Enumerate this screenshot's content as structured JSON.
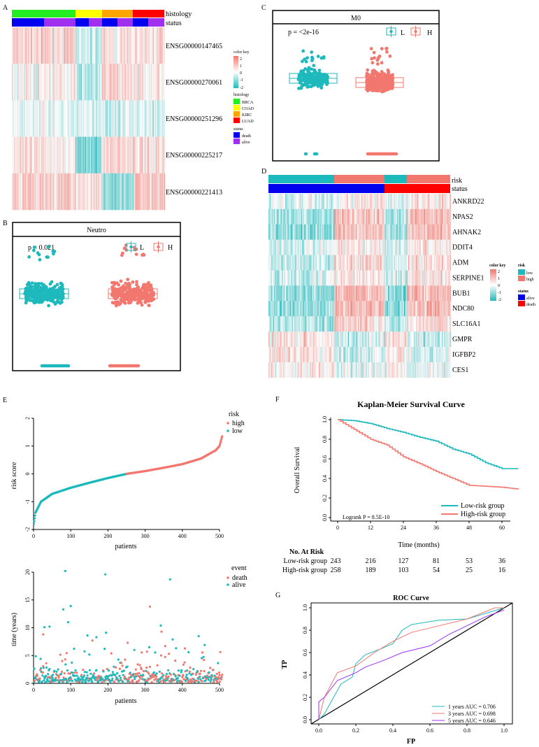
{
  "colors": {
    "teal": "#1DB9BC",
    "salmon": "#F2776E",
    "purple": "#9B30FF",
    "black": "#000000",
    "BRCA": "#22EE22",
    "COAD": "#FFFF00",
    "KIRC": "#FFA500",
    "LUAD": "#FF0000",
    "death": "#0000EE",
    "alive": "#A030F0",
    "statusAliveD": "#0000EE",
    "statusDeathD": "#FF0000"
  },
  "panelA": {
    "label": "A",
    "annotation_labels": [
      "histology",
      "status"
    ],
    "rows": [
      "ENSG00000147465",
      "ENSG00000270061",
      "ENSG00000251296",
      "ENSG00000225217",
      "ENSG00000221413"
    ],
    "histology_groups": [
      "BRCA",
      "COAD",
      "KIRC",
      "LUAD"
    ],
    "status_pattern": [
      "death",
      "alive",
      "death",
      "alive",
      "death",
      "alive",
      "death",
      "alive"
    ],
    "legend": {
      "color_key_title": "color key",
      "color_key_ticks": [
        "2",
        "1",
        "0",
        "-1",
        "-2"
      ],
      "histology_title": "histology",
      "histology": [
        "BRCA",
        "COAD",
        "KIRC",
        "LUAD"
      ],
      "status_title": "status",
      "status": [
        "death",
        "alive"
      ]
    }
  },
  "panelB": {
    "label": "B",
    "title": "Neutro",
    "pvalue": "p = 0.021",
    "legend": [
      "L",
      "H"
    ]
  },
  "panelC": {
    "label": "C",
    "title": "M0",
    "pvalue": "p = <2e-16",
    "legend": [
      "L",
      "H"
    ]
  },
  "panelD": {
    "label": "D",
    "annotation_labels": [
      "risk",
      "status"
    ],
    "rows": [
      "ANKRD22",
      "NPAS2",
      "AHNAK2",
      "DDIT4",
      "ADM",
      "SERPINE1",
      "BUB1",
      "NDC80",
      "SLC16A1",
      "GMPR",
      "IGFBP2",
      "CES1"
    ],
    "risk_pattern": [
      "low",
      "high",
      "low",
      "high"
    ],
    "status_pattern": [
      "alive",
      "death"
    ],
    "legend": {
      "color_key_title": "color key",
      "color_key_ticks": [
        "2",
        "1",
        "0",
        "-1",
        "-2"
      ],
      "risk_title": "risk",
      "risk": [
        "low",
        "high"
      ],
      "status_title": "status",
      "status": [
        "alive",
        "death"
      ]
    }
  },
  "panelE": {
    "label": "E"
  },
  "panelF": {
    "label": "F"
  },
  "panelG": {
    "label": "G"
  },
  "chart_data": [
    {
      "id": "E-top",
      "type": "scatter",
      "xlabel": "patients",
      "ylabel": "risk score",
      "xlim": [
        0,
        507
      ],
      "ylim": [
        -2,
        2
      ],
      "xticks": [
        "0",
        "100",
        "200",
        "300",
        "400",
        "500"
      ],
      "yticks": [
        "-2",
        "-1",
        "0",
        "1",
        "2"
      ],
      "legend_title": "risk",
      "legend": [
        "high",
        "low"
      ],
      "legend_position": "top-right",
      "low_high_cutoff_patient": 250,
      "sorted_curve": [
        [
          1,
          -1.8
        ],
        [
          5,
          -1.4
        ],
        [
          20,
          -1.0
        ],
        [
          50,
          -0.72
        ],
        [
          100,
          -0.5
        ],
        [
          150,
          -0.32
        ],
        [
          200,
          -0.15
        ],
        [
          250,
          0.0
        ],
        [
          300,
          0.1
        ],
        [
          350,
          0.22
        ],
        [
          400,
          0.35
        ],
        [
          450,
          0.55
        ],
        [
          490,
          0.85
        ],
        [
          500,
          1.0
        ],
        [
          507,
          1.35
        ]
      ]
    },
    {
      "id": "E-bottom",
      "type": "scatter",
      "xlabel": "patients",
      "ylabel": "time (years)",
      "xlim": [
        0,
        507
      ],
      "ylim": [
        0,
        20
      ],
      "xticks": [
        "0",
        "100",
        "200",
        "300",
        "400",
        "500"
      ],
      "yticks": [
        "0",
        "5",
        "10",
        "15",
        "20"
      ],
      "legend_title": "event",
      "legend": [
        "death",
        "alive"
      ],
      "legend_position": "top-right",
      "notable_points": [
        {
          "x": 85,
          "y": 20.2,
          "event": "alive"
        },
        {
          "x": 193,
          "y": 19.6,
          "event": "alive"
        },
        {
          "x": 367,
          "y": 18.7,
          "event": "alive"
        },
        {
          "x": 100,
          "y": 13.9,
          "event": "alive"
        },
        {
          "x": 80,
          "y": 13.3,
          "event": "alive"
        },
        {
          "x": 313,
          "y": 13.8,
          "event": "death"
        },
        {
          "x": 93,
          "y": 11.0,
          "event": "alive"
        },
        {
          "x": 29,
          "y": 10.1,
          "event": "alive"
        },
        {
          "x": 43,
          "y": 10.2,
          "event": "alive"
        },
        {
          "x": 342,
          "y": 10.4,
          "event": "alive"
        },
        {
          "x": 344,
          "y": 9.3,
          "event": "death"
        },
        {
          "x": 26,
          "y": 8.8,
          "event": "death"
        },
        {
          "x": 145,
          "y": 8.6,
          "event": "alive"
        },
        {
          "x": 444,
          "y": 8.5,
          "event": "alive"
        },
        {
          "x": 169,
          "y": 8.3,
          "event": "alive"
        },
        {
          "x": 195,
          "y": 9.1,
          "event": "alive"
        },
        {
          "x": 253,
          "y": 7.3,
          "event": "death"
        },
        {
          "x": 374,
          "y": 7.9,
          "event": "alive"
        },
        {
          "x": 460,
          "y": 6.9,
          "event": "alive"
        },
        {
          "x": 354,
          "y": 6.7,
          "event": "death"
        },
        {
          "x": 305,
          "y": 5.7,
          "event": "death"
        }
      ]
    },
    {
      "id": "F",
      "type": "line",
      "title": "Kaplan-Meier Survival Curve",
      "xlabel": "Time (months)",
      "ylabel": "Overall Survival",
      "xlim": [
        0,
        66
      ],
      "ylim": [
        0,
        1
      ],
      "xticks": [
        "0",
        "12",
        "24",
        "36",
        "48",
        "60"
      ],
      "yticks": [
        "0.0",
        "0.2",
        "0.4",
        "0.6",
        "0.8",
        "1.0"
      ],
      "annotation": "Logrank P = 8.5E-10",
      "legend_position": "bottom-right",
      "series": [
        {
          "name": "Low-risk group",
          "color": "#1DB9BC",
          "x": [
            0,
            6,
            12,
            18,
            24,
            30,
            36,
            42,
            48,
            54,
            60,
            66
          ],
          "y": [
            1.0,
            0.99,
            0.96,
            0.91,
            0.87,
            0.82,
            0.78,
            0.7,
            0.65,
            0.56,
            0.5,
            0.5
          ]
        },
        {
          "name": "High-risk group",
          "color": "#F2776E",
          "x": [
            0,
            6,
            12,
            18,
            24,
            30,
            36,
            42,
            48,
            54,
            60,
            66
          ],
          "y": [
            1.0,
            0.9,
            0.8,
            0.74,
            0.62,
            0.55,
            0.47,
            0.4,
            0.33,
            0.32,
            0.31,
            0.29
          ]
        }
      ],
      "risk_table": {
        "title": "No. At Risk",
        "rows": [
          {
            "name": "Low-risk group",
            "values": [
              "243",
              "216",
              "127",
              "81",
              "53",
              "36"
            ]
          },
          {
            "name": "High-risk group",
            "values": [
              "258",
              "189",
              "103",
              "54",
              "25",
              "16"
            ]
          }
        ]
      }
    },
    {
      "id": "G",
      "type": "line",
      "title": "ROC Curve",
      "xlabel": "FP",
      "ylabel": "TP",
      "xlim": [
        0,
        1
      ],
      "ylim": [
        0,
        1
      ],
      "xticks": [
        "0.0",
        "0.2",
        "0.4",
        "0.6",
        "0.8",
        "1.0"
      ],
      "yticks": [
        "0.0",
        "0.2",
        "0.4",
        "0.6",
        "0.8",
        "1.0"
      ],
      "legend_position": "bottom-right",
      "series": [
        {
          "name": "1 years AUC  =  0.706",
          "color": "#1DB9BC",
          "x": [
            0,
            0.03,
            0.08,
            0.12,
            0.18,
            0.2,
            0.25,
            0.33,
            0.4,
            0.45,
            0.5,
            0.65,
            0.8,
            0.9,
            1.0
          ],
          "y": [
            0,
            0.05,
            0.2,
            0.32,
            0.38,
            0.5,
            0.58,
            0.63,
            0.68,
            0.8,
            0.85,
            0.89,
            0.9,
            0.95,
            1.0
          ]
        },
        {
          "name": "3 years AUC  =  0.698",
          "color": "#F2776E",
          "x": [
            0,
            0.03,
            0.1,
            0.2,
            0.3,
            0.4,
            0.5,
            0.6,
            0.8,
            0.95,
            1.0
          ],
          "y": [
            0,
            0.2,
            0.42,
            0.48,
            0.6,
            0.7,
            0.78,
            0.82,
            0.9,
            1.0,
            1.0
          ]
        },
        {
          "name": "5 years AUC  =  0.646",
          "color": "#9B30FF",
          "x": [
            0,
            0,
            0.03,
            0.1,
            0.2,
            0.25,
            0.35,
            0.45,
            0.6,
            0.7,
            0.8,
            0.9,
            1.0
          ],
          "y": [
            0,
            0.16,
            0.2,
            0.35,
            0.42,
            0.47,
            0.53,
            0.6,
            0.66,
            0.76,
            0.84,
            0.92,
            0.98
          ]
        }
      ]
    }
  ]
}
